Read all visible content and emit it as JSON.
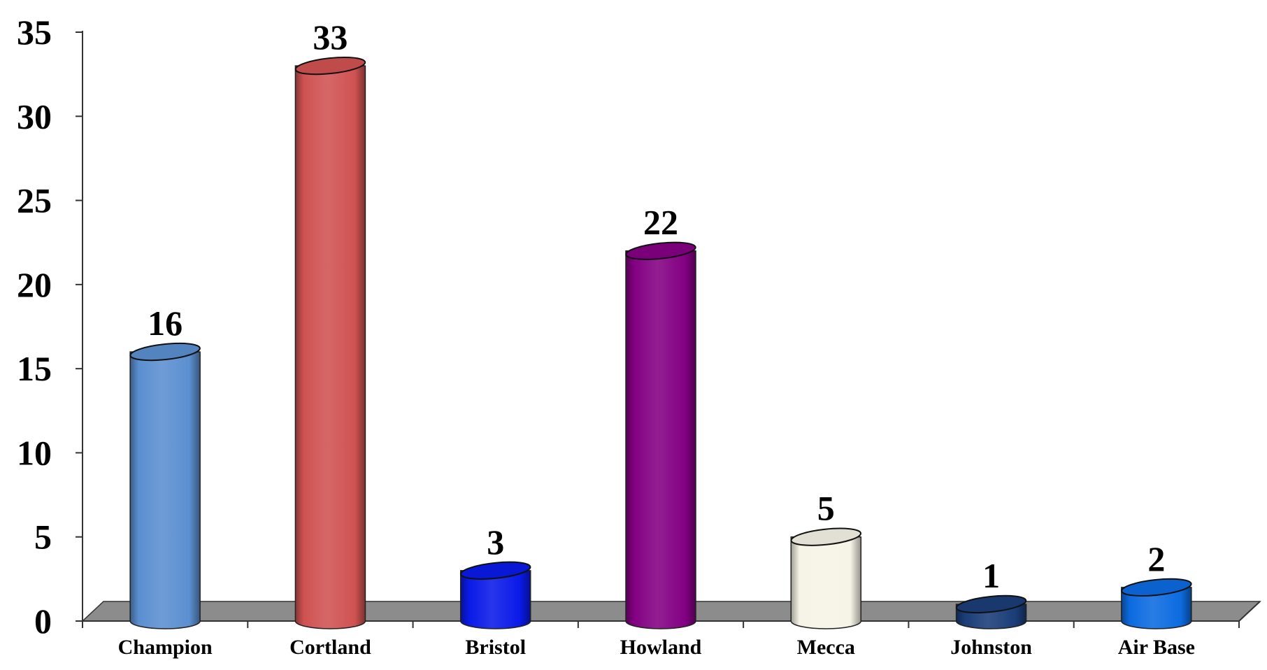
{
  "chart_data": {
    "type": "bar",
    "title": "",
    "xlabel": "",
    "ylabel": "",
    "categories": [
      "Champion",
      "Cortland",
      "Bristol",
      "Howland",
      "Mecca",
      "Johnston",
      "Air Base"
    ],
    "values": [
      16,
      33,
      3,
      22,
      5,
      1,
      2
    ],
    "ylim": [
      0,
      35
    ],
    "yticks": [
      0,
      5,
      10,
      15,
      20,
      25,
      30,
      35
    ],
    "data_labels": [
      "16",
      "33",
      "3",
      "22",
      "5",
      "1",
      "2"
    ],
    "grid": false,
    "legend": "none",
    "bar_shape": "cylinder",
    "colors": [
      "#5b8fd0",
      "#d05252",
      "#0a1ae8",
      "#830083",
      "#f6f4e6",
      "#1a3d78",
      "#0c6be0"
    ],
    "floor_color": "#8c8c8c"
  }
}
